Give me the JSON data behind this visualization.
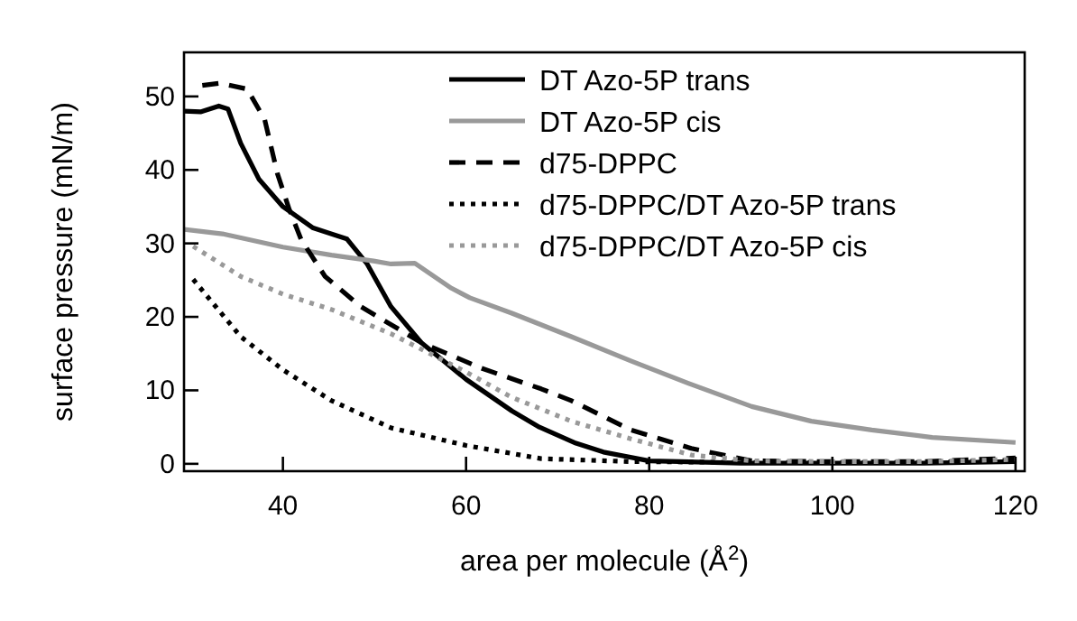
{
  "chart_data": {
    "type": "line",
    "xlabel": "area per molecule (Å$^{2}$)",
    "ylabel": "surface pressure (mN/m)",
    "xlim": [
      29.2,
      121
    ],
    "ylim": [
      -1,
      56
    ],
    "xticks": [
      40,
      60,
      80,
      100,
      120
    ],
    "yticks": [
      0,
      10,
      20,
      30,
      40,
      50
    ],
    "grid": false,
    "legend": "top right",
    "marker": "none",
    "series": [
      {
        "name": "DT Azo-5P trans",
        "color": "#000000",
        "line_style": "solid",
        "x": [
          29.2,
          31,
          33,
          34,
          35.4,
          37.4,
          40,
          43.3,
          47,
          49.2,
          51.8,
          55.1,
          60,
          65,
          68,
          72,
          75,
          80,
          90,
          100,
          110,
          120
        ],
        "values": [
          48,
          47.9,
          48.7,
          48.3,
          43.6,
          38.7,
          35,
          32.1,
          30.6,
          27.2,
          21.4,
          16.5,
          11.5,
          7.2,
          5,
          2.8,
          1.6,
          0.4,
          0.1,
          0.1,
          0.1,
          0.3
        ]
      },
      {
        "name": "DT Azo-5P cis",
        "color": "#999999",
        "line_style": "solid",
        "x": [
          29.2,
          33.4,
          40,
          45.3,
          49.9,
          51.8,
          54.4,
          58.4,
          60.4,
          65,
          71.5,
          78,
          84.6,
          91.2,
          97.7,
          104.3,
          110.9,
          120
        ],
        "values": [
          31.9,
          31.3,
          29.5,
          28.4,
          27.6,
          27.2,
          27.3,
          23.9,
          22.6,
          20.5,
          17.3,
          14,
          10.8,
          7.8,
          5.8,
          4.6,
          3.6,
          2.9
        ]
      },
      {
        "name": "d75-DPPC",
        "color": "#000000",
        "line_style": "dashed",
        "x": [
          31.2,
          33.1,
          36.1,
          38,
          39.4,
          40.7,
          42,
          44.6,
          48.5,
          55.1,
          61.7,
          68.2,
          71.5,
          78,
          84.6,
          91.2,
          100,
          110,
          120
        ],
        "values": [
          51.5,
          51.8,
          51,
          46.9,
          39.5,
          34.6,
          30.5,
          25.5,
          21.4,
          16.5,
          13,
          10.2,
          8.6,
          4.6,
          2.1,
          0.4,
          0.3,
          0.3,
          0.8
        ]
      },
      {
        "name": "d75-DPPC/DT Azo-5P trans",
        "color": "#000000",
        "line_style": "dotted",
        "x": [
          30.2,
          35.4,
          40,
          45.3,
          51.8,
          60,
          68.2,
          78,
          90,
          100,
          110,
          120
        ],
        "values": [
          25.1,
          17.3,
          12.8,
          8.6,
          4.9,
          2.5,
          0.7,
          0.3,
          0.2,
          0.2,
          0.2,
          0.5
        ]
      },
      {
        "name": "d75-DPPC/DT Azo-5P cis",
        "color": "#999999",
        "line_style": "dotted",
        "x": [
          30.2,
          35.4,
          40,
          45.3,
          51.8,
          60,
          64.9,
          71.5,
          78,
          84.6,
          91.2,
          100,
          110,
          120
        ],
        "values": [
          29.6,
          25.5,
          23.1,
          21,
          17.7,
          12.5,
          9.1,
          5.8,
          3.4,
          1.2,
          0.4,
          0.3,
          0.3,
          0.6
        ]
      }
    ]
  }
}
